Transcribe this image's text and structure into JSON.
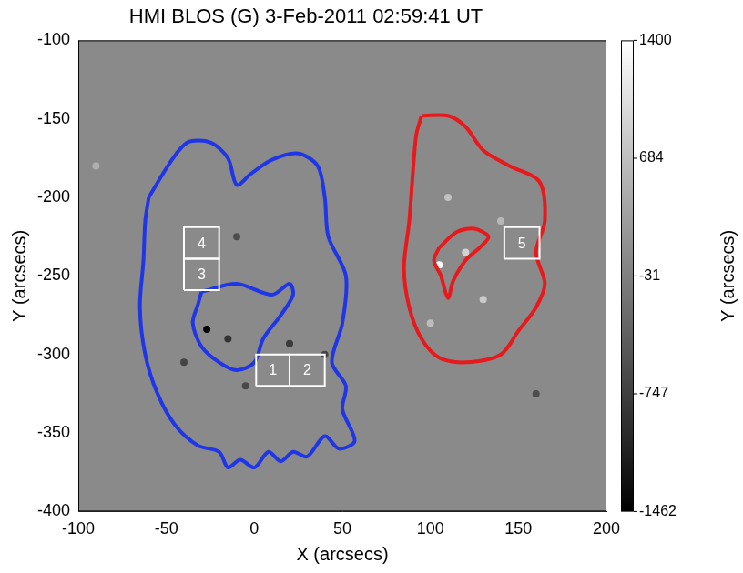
{
  "chart_data": {
    "type": "scatter",
    "title": "HMI BLOS (G) 3-Feb-2011 02:59:41 UT",
    "x_label": "X (arcsecs)",
    "y_label": "Y (arcsecs)",
    "y2_label": "Y (arcsecs)",
    "xlim": [
      -100,
      200
    ],
    "xticks": [
      -100,
      -50,
      0,
      50,
      100,
      150,
      200
    ],
    "ylim": [
      -400,
      -100
    ],
    "yticks": [
      -400,
      -350,
      -300,
      -250,
      -200,
      -150,
      -100
    ],
    "grid": false,
    "contours": [
      {
        "color": "#1e36e8",
        "x": [
          -60,
          -48,
          -38,
          -25,
          -15,
          -10,
          -2,
          10,
          25,
          36,
          40,
          42,
          52,
          50,
          44,
          52,
          50,
          57,
          48,
          40,
          30,
          22,
          15,
          8,
          0,
          -8,
          -15,
          -20,
          -32,
          -45,
          -55,
          -62,
          -65,
          -63,
          -62
        ],
        "y": [
          -200,
          -178,
          -165,
          -165,
          -175,
          -192,
          -185,
          -176,
          -172,
          -180,
          -200,
          -225,
          -250,
          -280,
          -305,
          -320,
          -335,
          -355,
          -360,
          -352,
          -365,
          -362,
          -368,
          -362,
          -372,
          -367,
          -372,
          -362,
          -358,
          -345,
          -325,
          -300,
          -270,
          -240,
          -215
        ]
      },
      {
        "color": "#1e36e8",
        "x": [
          -30,
          -10,
          10,
          20,
          22,
          15,
          5,
          0,
          -10,
          -20,
          -30,
          -35,
          -32
        ],
        "y": [
          -260,
          -255,
          -262,
          -255,
          -262,
          -275,
          -290,
          -305,
          -310,
          -305,
          -295,
          -280,
          -268
        ]
      },
      {
        "color": "#e8191c",
        "x": [
          95,
          110,
          120,
          130,
          145,
          162,
          165,
          160,
          165,
          160,
          150,
          140,
          120,
          105,
          95,
          88,
          85,
          88,
          90,
          92
        ],
        "y": [
          -148,
          -148,
          -155,
          -170,
          -180,
          -190,
          -215,
          -235,
          -255,
          -270,
          -285,
          -300,
          -305,
          -302,
          -290,
          -270,
          -245,
          -215,
          -185,
          -160
        ]
      },
      {
        "color": "#e8191c",
        "x": [
          105,
          115,
          125,
          133,
          128,
          120,
          113,
          110,
          106,
          102
        ],
        "y": [
          -232,
          -222,
          -220,
          -225,
          -232,
          -240,
          -253,
          -264,
          -250,
          -240
        ]
      }
    ],
    "boxes": [
      {
        "label": "1",
        "x": [
          1,
          20
        ],
        "y": [
          -320,
          -300
        ]
      },
      {
        "label": "2",
        "x": [
          20,
          40
        ],
        "y": [
          -320,
          -300
        ]
      },
      {
        "label": "3",
        "x": [
          -40,
          -20
        ],
        "y": [
          -259,
          -239
        ]
      },
      {
        "label": "4",
        "x": [
          -40,
          -20
        ],
        "y": [
          -239,
          -219
        ]
      },
      {
        "label": "5",
        "x": [
          142,
          162
        ],
        "y": [
          -239,
          -219
        ]
      }
    ],
    "field": {
      "x": [
        105,
        -27,
        -15,
        20,
        -40,
        110,
        130,
        140,
        -90,
        -10,
        40,
        160,
        120,
        -5,
        100
      ],
      "y": [
        -243,
        -284,
        -290,
        -293,
        -305,
        -200,
        -265,
        -215,
        -180,
        -225,
        -300,
        -325,
        -235,
        -320,
        -280
      ],
      "values": [
        1400,
        -1462,
        -900,
        -800,
        -700,
        700,
        800,
        600,
        500,
        -600,
        -700,
        -600,
        900,
        -650,
        650
      ]
    },
    "colorbar": {
      "range": [
        -1462,
        1400
      ],
      "ticks": [
        1400,
        684,
        -31,
        -747,
        -1462
      ]
    }
  }
}
